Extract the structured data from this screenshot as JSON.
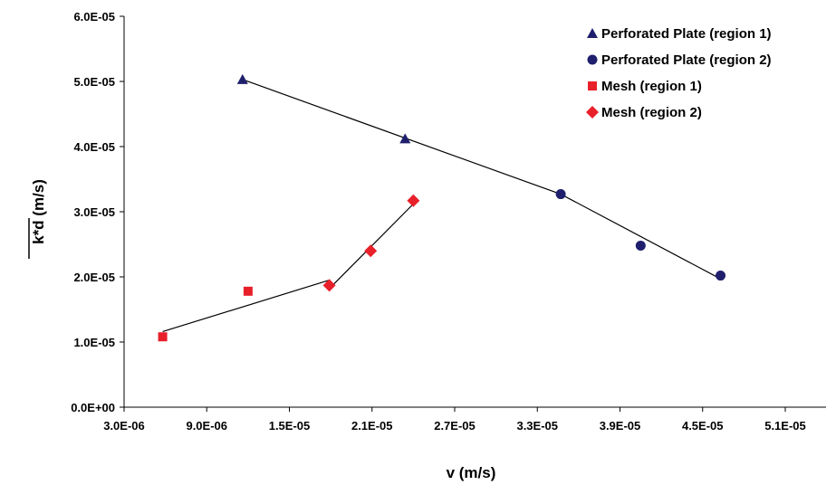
{
  "chart_data": {
    "type": "scatter",
    "xlabel": "v (m/s)",
    "ylabel": "k*d (m/s)",
    "xlim": [
      3e-06,
      5.1e-05
    ],
    "ylim": [
      0,
      6e-05
    ],
    "grid": false,
    "legend_position": "top-right",
    "x_ticks": [
      "3.0E-06",
      "9.0E-06",
      "1.5E-05",
      "2.1E-05",
      "2.7E-05",
      "3.3E-05",
      "3.9E-05",
      "4.5E-05",
      "5.1E-05"
    ],
    "y_ticks": [
      "0.0E+00",
      "1.0E-05",
      "2.0E-05",
      "3.0E-05",
      "4.0E-05",
      "5.0E-05",
      "6.0E-05"
    ],
    "series": [
      {
        "name": "Perforated Plate (region 1)",
        "marker": "triangle",
        "color": "#1f1f6e",
        "points": [
          [
            1.16e-05,
            5.03e-05
          ],
          [
            2.34e-05,
            4.12e-05
          ]
        ]
      },
      {
        "name": "Perforated Plate (region 2)",
        "marker": "circle",
        "color": "#1f1f6e",
        "points": [
          [
            3.47e-05,
            3.27e-05
          ],
          [
            4.05e-05,
            2.48e-05
          ],
          [
            4.63e-05,
            2.02e-05
          ]
        ]
      },
      {
        "name": "Mesh (region 1)",
        "marker": "square",
        "color": "#e8202a",
        "points": [
          [
            5.8e-06,
            1.08e-05
          ],
          [
            1.2e-05,
            1.78e-05
          ]
        ]
      },
      {
        "name": "Mesh (region 2)",
        "marker": "diamond",
        "color": "#e8202a",
        "points": [
          [
            1.79e-05,
            1.87e-05
          ],
          [
            2.09e-05,
            2.4e-05
          ],
          [
            2.4e-05,
            3.17e-05
          ]
        ]
      }
    ],
    "fit_lines": [
      {
        "points": [
          [
            1.16e-05,
            5.03e-05
          ],
          [
            3.47e-05,
            3.27e-05
          ],
          [
            4.63e-05,
            1.97e-05
          ]
        ]
      },
      {
        "points": [
          [
            5.8e-06,
            1.16e-05
          ],
          [
            1.79e-05,
            1.95e-05
          ]
        ]
      },
      {
        "points": [
          [
            1.79e-05,
            1.82e-05
          ],
          [
            2.4e-05,
            3.12e-05
          ]
        ]
      }
    ],
    "line_color": "#000000"
  }
}
